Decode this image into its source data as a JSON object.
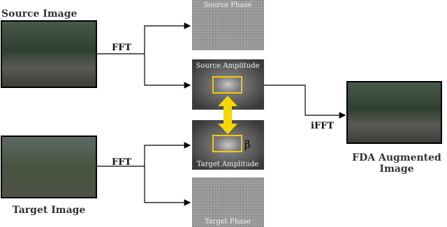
{
  "source_image": {
    "label": "Source Image"
  },
  "target_image": {
    "label": "Target Image"
  },
  "operations": {
    "fft_source": "FFT",
    "fft_target": "FFT",
    "ifft": "iFFT"
  },
  "panels": {
    "source_phase": "Source Phase",
    "source_amplitude": "Source Amplitude",
    "target_amplitude": "Target Amplitude",
    "target_phase": "Target Phase"
  },
  "beta": "β",
  "output": {
    "line1": "FDA Augmented",
    "line2": "Image"
  }
}
